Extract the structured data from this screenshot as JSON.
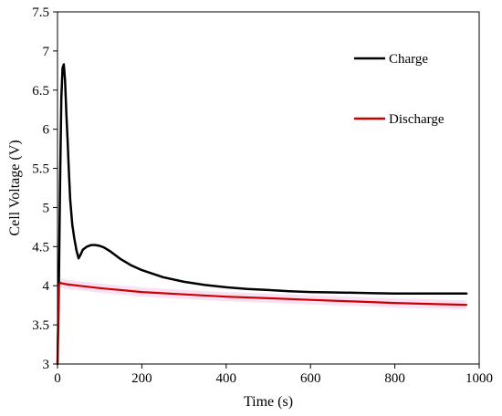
{
  "chart_data": {
    "type": "line",
    "title": "",
    "xlabel": "Time (s)",
    "ylabel": "Cell Voltage (V)",
    "xlim": [
      0,
      1000
    ],
    "ylim": [
      3,
      7.5
    ],
    "xticks": [
      0,
      200,
      400,
      600,
      800,
      1000
    ],
    "yticks": [
      3,
      3.5,
      4,
      4.5,
      5,
      5.5,
      6,
      6.5,
      7,
      7.5
    ],
    "xtick_labels": [
      "0",
      "200",
      "400",
      "600",
      "800",
      "1000"
    ],
    "ytick_labels": [
      "3",
      "3.5",
      "4",
      "4.5",
      "5",
      "5.5",
      "6",
      "6.5",
      "7",
      "7.5"
    ],
    "grid": false,
    "legend_position": "top-right",
    "series": [
      {
        "name": "Charge",
        "color": "#000000",
        "x": [
          0,
          3,
          6,
          9,
          12,
          15,
          18,
          21,
          24,
          27,
          30,
          35,
          40,
          45,
          50,
          55,
          60,
          70,
          80,
          90,
          100,
          110,
          125,
          150,
          175,
          200,
          250,
          300,
          350,
          400,
          450,
          500,
          550,
          600,
          650,
          700,
          750,
          800,
          850,
          900,
          950,
          970
        ],
        "y": [
          3.0,
          3.9,
          5.3,
          6.4,
          6.78,
          6.83,
          6.62,
          6.2,
          5.85,
          5.45,
          5.1,
          4.78,
          4.6,
          4.45,
          4.35,
          4.4,
          4.46,
          4.5,
          4.52,
          4.52,
          4.51,
          4.49,
          4.44,
          4.34,
          4.26,
          4.2,
          4.11,
          4.05,
          4.01,
          3.98,
          3.96,
          3.945,
          3.93,
          3.92,
          3.915,
          3.91,
          3.905,
          3.9,
          3.9,
          3.9,
          3.9,
          3.9
        ]
      },
      {
        "name": "Discharge",
        "color": "#cc0000",
        "x": [
          0,
          3,
          6,
          10,
          20,
          50,
          100,
          200,
          300,
          400,
          500,
          600,
          700,
          800,
          900,
          970
        ],
        "y": [
          3.0,
          4.0,
          4.04,
          4.03,
          4.02,
          4.0,
          3.97,
          3.92,
          3.89,
          3.86,
          3.84,
          3.82,
          3.8,
          3.78,
          3.765,
          3.755
        ]
      }
    ]
  }
}
